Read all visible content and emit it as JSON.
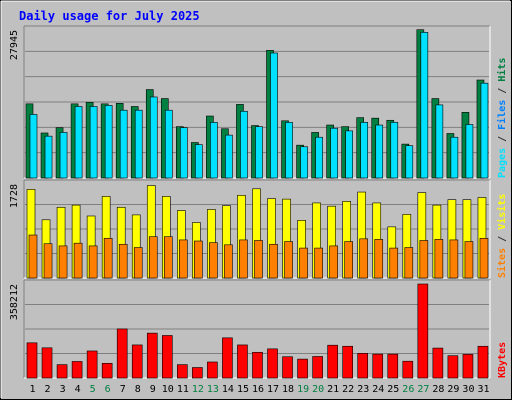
{
  "chart_data": {
    "type": "bar",
    "title": "Daily usage for July 2025",
    "days": [
      "1",
      "2",
      "3",
      "4",
      "5",
      "6",
      "7",
      "8",
      "9",
      "10",
      "11",
      "12",
      "13",
      "14",
      "15",
      "16",
      "17",
      "18",
      "19",
      "20",
      "21",
      "22",
      "23",
      "24",
      "25",
      "26",
      "27",
      "28",
      "29",
      "30",
      "31"
    ],
    "weekend_days": [
      "5",
      "6",
      "12",
      "13",
      "19",
      "20",
      "26",
      "27"
    ],
    "panels": [
      {
        "id": "top",
        "max_label": "27945",
        "ymax": 27945,
        "series": [
          {
            "name": "Hits",
            "color": "#008040",
            "values": [
              14000,
              8500,
              9500,
              14000,
              14300,
              14000,
              14100,
              13500,
              16700,
              15000,
              9700,
              6700,
              11700,
              9300,
              13900,
              9900,
              24100,
              10800,
              6200,
              8600,
              10000,
              9700,
              11400,
              11300,
              10900,
              6400,
              28000,
              15000,
              8400,
              12400,
              18500
            ]
          },
          {
            "name": "Files",
            "color": "#0080ff",
            "values": [
              12000,
              7900,
              8600,
              13500,
              13500,
              13700,
              12800,
              12800,
              15300,
              12800,
              9500,
              6300,
              10500,
              8100,
              12600,
              9700,
              23600,
              10500,
              5900,
              7700,
              9400,
              8900,
              10500,
              10000,
              10500,
              6100,
              27500,
              13800,
              7700,
              10100,
              17900
            ]
          },
          {
            "name": "Pages",
            "color": "#00e0ff",
            "values": [
              12000,
              7900,
              8600,
              13500,
              13500,
              13700,
              12800,
              12800,
              15300,
              12800,
              9500,
              6300,
              10500,
              8100,
              12600,
              9700,
              23600,
              10500,
              5900,
              7700,
              9400,
              8900,
              10500,
              10000,
              10500,
              6100,
              27500,
              13800,
              7700,
              10100,
              17900
            ]
          }
        ],
        "label_parts": [
          {
            "text": "Pages",
            "color": "#00e0ff"
          },
          {
            "text": " / ",
            "color": "#333333"
          },
          {
            "text": "Files",
            "color": "#0080ff"
          },
          {
            "text": " / ",
            "color": "#333333"
          },
          {
            "text": "Hits",
            "color": "#008040"
          }
        ]
      },
      {
        "id": "middle",
        "max_label": "1728",
        "ymax": 1728,
        "series": [
          {
            "name": "Visits",
            "color": "#ffff00",
            "values": [
              1630,
              1070,
              1300,
              1340,
              1140,
              1500,
              1300,
              1160,
              1700,
              1500,
              1240,
              1020,
              1260,
              1330,
              1520,
              1640,
              1460,
              1450,
              1060,
              1380,
              1320,
              1410,
              1580,
              1380,
              940,
              1170,
              1570,
              1340,
              1440,
              1440,
              1480
            ]
          },
          {
            "name": "Sites",
            "color": "#ff8000",
            "values": [
              790,
              630,
              590,
              640,
              590,
              730,
              620,
              560,
              760,
              760,
              700,
              680,
              650,
              610,
              700,
              690,
              620,
              670,
              550,
              550,
              590,
              670,
              720,
              710,
              550,
              560,
              690,
              710,
              700,
              670,
              730
            ]
          }
        ],
        "label_parts": [
          {
            "text": "Sites",
            "color": "#ff8000"
          },
          {
            "text": " / ",
            "color": "#333333"
          },
          {
            "text": "Visits",
            "color": "#ffff00"
          }
        ]
      },
      {
        "id": "bottom",
        "max_label": "358212",
        "ymax": 358212,
        "series": [
          {
            "name": "KBytes",
            "color": "#ff0000",
            "values": [
              134000,
              115000,
              51000,
              63000,
              103000,
              56000,
              187000,
              126000,
              171000,
              162000,
              51000,
              40000,
              61000,
              153000,
              126000,
              98000,
              111000,
              81000,
              72000,
              82000,
              125000,
              121000,
              94000,
              91000,
              91000,
              64000,
              358212,
              114000,
              85000,
              90000,
              121000
            ]
          }
        ],
        "label_parts": [
          {
            "text": "KBytes",
            "color": "#ff0000"
          }
        ]
      }
    ]
  }
}
